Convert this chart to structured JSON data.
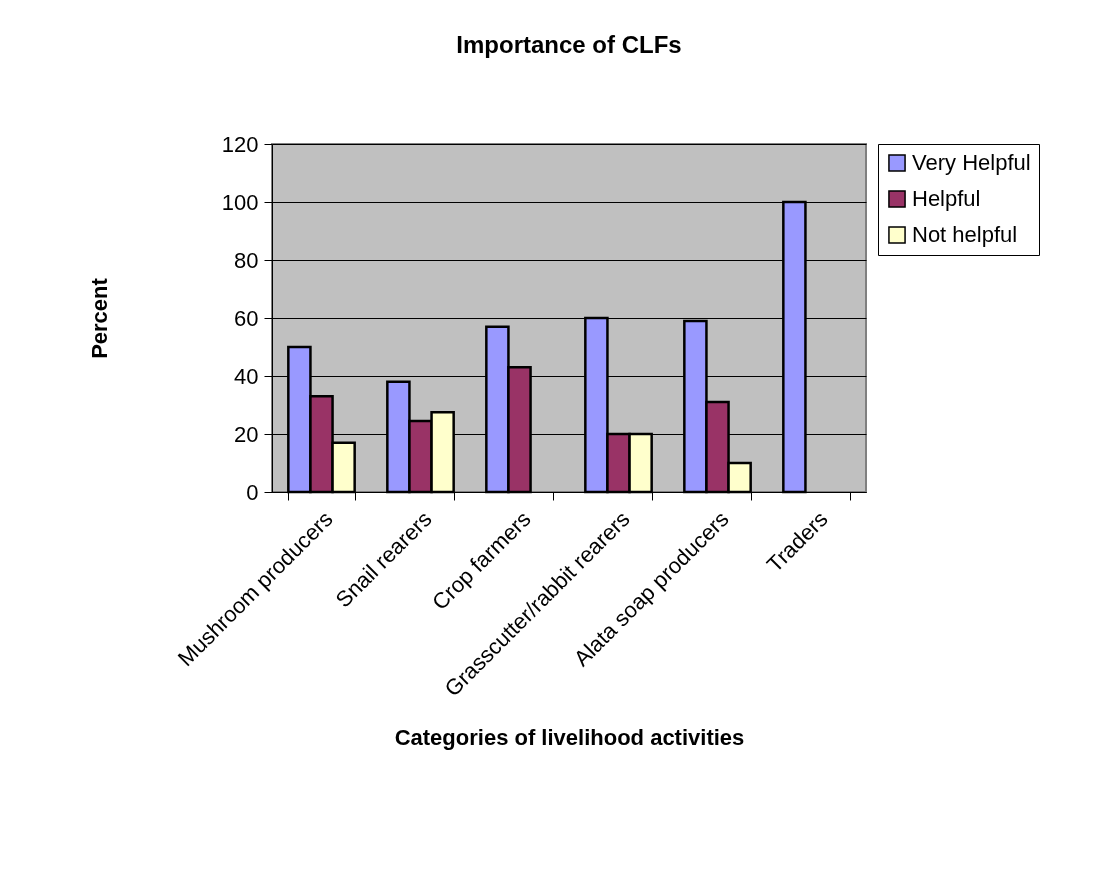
{
  "chart_data": {
    "type": "bar",
    "title": "Importance of CLFs",
    "xlabel": "Categories of livelihood activities",
    "ylabel": "Percent",
    "categories": [
      "Mushroom producers",
      "Snail rearers",
      "Crop farmers",
      "Grasscutter/rabbit rearers",
      "Alata soap producers",
      "Traders"
    ],
    "series": [
      {
        "name": "Very Helpful",
        "color": "#9999ff",
        "values": [
          50,
          38,
          57,
          60,
          59,
          100
        ]
      },
      {
        "name": "Helpful",
        "color": "#993366",
        "values": [
          33,
          24.5,
          43,
          20,
          31,
          null
        ]
      },
      {
        "name": "Not helpful",
        "color": "#ffffcc",
        "values": [
          17,
          27.5,
          null,
          20,
          10,
          null
        ]
      }
    ],
    "ylim": [
      0,
      120
    ],
    "yticks": [
      0,
      20,
      40,
      60,
      80,
      100,
      120
    ],
    "grid": "y",
    "legend": "right"
  }
}
